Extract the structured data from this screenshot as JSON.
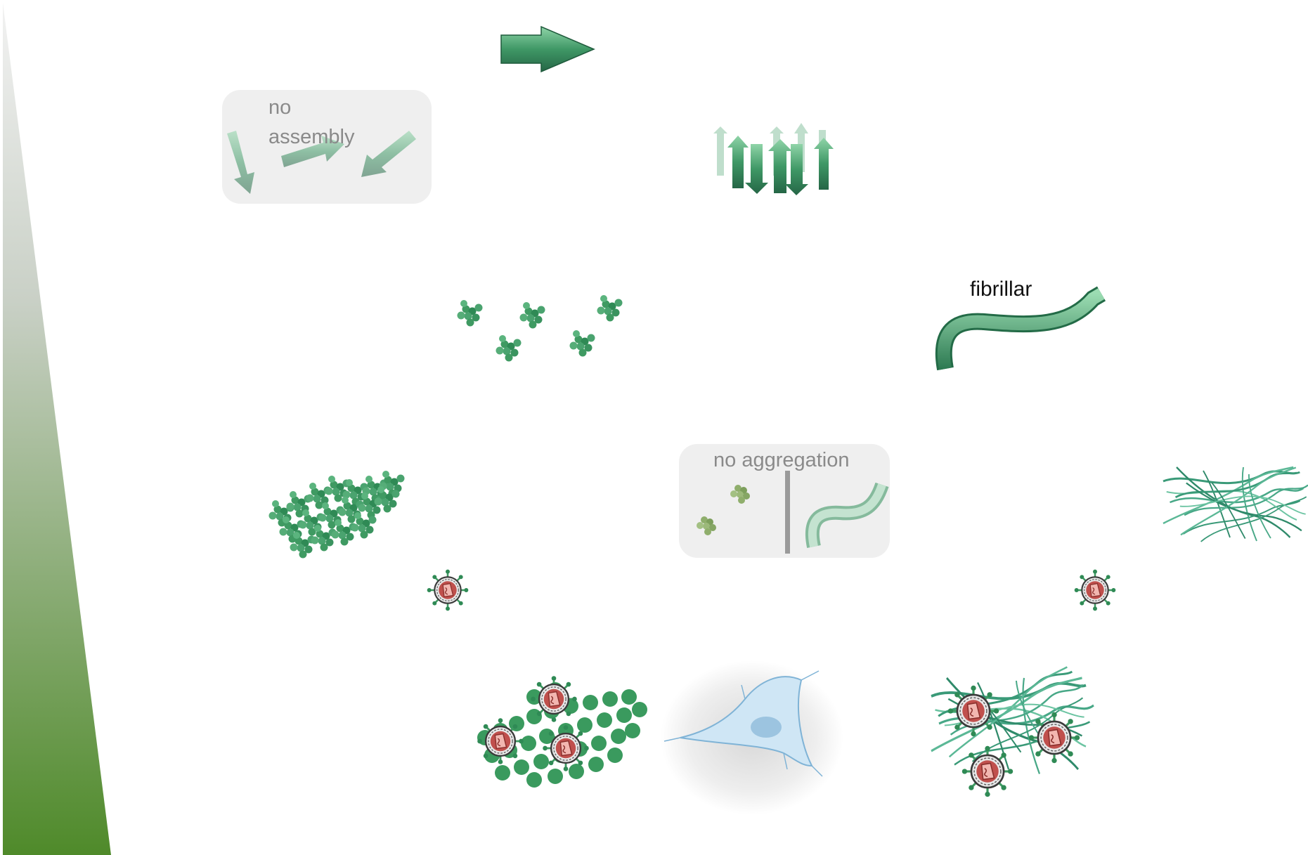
{
  "labels": {
    "no_assembly_line1": "no",
    "no_assembly_line2": "assembly",
    "fibrillar": "fibrillar",
    "no_aggregation": "no aggregation"
  },
  "colors": {
    "green_dark": "#2f7d52",
    "green_mid": "#4aa36f",
    "green_light": "#8fcfa6",
    "ramp_top": "#e6e6e6",
    "ramp_bottom": "#4f8a2a",
    "virus_red": "#c0504d",
    "virus_pink": "#f2b6b0",
    "cell_blue": "#a9d3ee",
    "box_grey": "#efefef"
  },
  "icons": [
    "gradient-ramp",
    "single-peptide-arrow-icon",
    "random-peptide-arrows-icon",
    "beta-sheet-stack-icon",
    "nanoparticle-cluster-icon",
    "fibril-icon",
    "aggregate-mesh-icon",
    "virus-particle-icon",
    "cell-icon"
  ]
}
